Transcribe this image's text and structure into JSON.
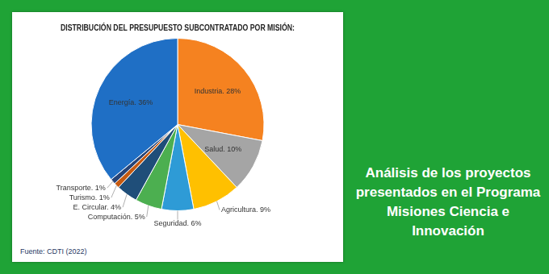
{
  "chart_data": {
    "type": "pie",
    "title": "DISTRIBUCIÓN DEL PRESUPUESTO SUBCONTRATADO POR MISIÓN:",
    "categories": [
      "Industria",
      "Salud",
      "Agricultura",
      "Seguridad",
      "Computación",
      "E. Circular",
      "Turismo",
      "Transporte",
      "Energía"
    ],
    "values": [
      28,
      10,
      9,
      6,
      5,
      4,
      1,
      1,
      36
    ],
    "value_labels": [
      "Industria. 28%",
      "Salud. 10%",
      "Agricultura. 9%",
      "Seguridad. 6%",
      "Computación. 5%",
      "E. Circular. 4%",
      "Turismo. 1%",
      "Transporte. 1%",
      "Energía. 36%"
    ],
    "colors": [
      "#f58220",
      "#a5a5a5",
      "#ffc000",
      "#2e9bd6",
      "#4caf50",
      "#1f4e79",
      "#c55a11",
      "#264478",
      "#1f6fc5"
    ],
    "data_labels": true
  },
  "source": "Fuente: CDTI (2022)",
  "banner": "Análisis de los proyectos presentados en el Programa Misiones Ciencia e Innovación"
}
